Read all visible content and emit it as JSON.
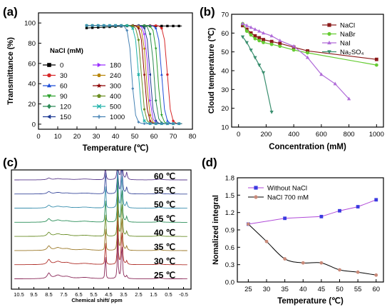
{
  "panels": {
    "a": {
      "label": "(a)",
      "chart_data": {
        "type": "line",
        "xlabel": "Temperature (℃)",
        "ylabel": "Transmittance (%)",
        "xlim": [
          0,
          80
        ],
        "ylim": [
          -5,
          110
        ],
        "xticks": [
          0,
          10,
          20,
          30,
          40,
          50,
          60,
          70,
          80
        ],
        "yticks": [
          0,
          20,
          40,
          60,
          80,
          100
        ],
        "legend_title": "NaCl (mM)",
        "series": [
          {
            "name": "0",
            "color": "#000000",
            "marker": "square",
            "onset": null
          },
          {
            "name": "30",
            "color": "#d62728",
            "marker": "circle",
            "onset": 67
          },
          {
            "name": "60",
            "color": "#1f4fd8",
            "marker": "triangle",
            "onset": 64
          },
          {
            "name": "90",
            "color": "#2ca02c",
            "marker": "triangle-down",
            "onset": 62
          },
          {
            "name": "120",
            "color": "#2e8b57",
            "marker": "diamond",
            "onset": 60
          },
          {
            "name": "150",
            "color": "#1f3a93",
            "marker": "triangle-left",
            "onset": 58
          },
          {
            "name": "180",
            "color": "#9b30ff",
            "marker": "triangle-right",
            "onset": 57
          },
          {
            "name": "240",
            "color": "#b8860b",
            "marker": "hexagon",
            "onset": 56
          },
          {
            "name": "300",
            "color": "#8b0000",
            "marker": "star",
            "onset": 55
          },
          {
            "name": "400",
            "color": "#6b8e23",
            "marker": "pentagon",
            "onset": 53.5
          },
          {
            "name": "500",
            "color": "#20b2aa",
            "marker": "x",
            "onset": 52
          },
          {
            "name": "1000",
            "color": "#4682b4",
            "marker": "cross",
            "onset": 48.5
          }
        ]
      }
    },
    "b": {
      "label": "(b)",
      "chart_data": {
        "type": "line",
        "xlabel": "Concentration (mM)",
        "ylabel": "Cloud temperature (℃)",
        "xlim": [
          -50,
          1050
        ],
        "ylim": [
          10,
          70
        ],
        "xticks": [
          0,
          200,
          400,
          600,
          800,
          1000
        ],
        "yticks": [
          10,
          20,
          30,
          40,
          50,
          60,
          70
        ],
        "series": [
          {
            "name": "NaCl",
            "color": "#8b1a1a",
            "marker": "square",
            "x": [
              30,
              60,
              90,
              120,
              150,
              180,
              240,
              300,
              400,
              500,
              1000
            ],
            "y": [
              64,
              62,
              60,
              58.5,
              57.5,
              56.5,
              55.5,
              54.5,
              52.5,
              50.5,
              46
            ]
          },
          {
            "name": "NaBr",
            "color": "#66cc33",
            "marker": "circle",
            "x": [
              30,
              60,
              90,
              120,
              150,
              180,
              240,
              300,
              400,
              500,
              1000
            ],
            "y": [
              65,
              61,
              59,
              57,
              56,
              55,
              54,
              53,
              51,
              49.5,
              43
            ]
          },
          {
            "name": "NaI",
            "color": "#b06bd8",
            "marker": "triangle",
            "x": [
              30,
              60,
              90,
              120,
              150,
              180,
              240,
              300,
              400,
              500,
              600,
              700,
              800
            ],
            "y": [
              65,
              64,
              63,
              62,
              61,
              60,
              58.5,
              56,
              53,
              47,
              38,
              33,
              25
            ]
          },
          {
            "name": "Na₂SO₄",
            "color": "#3a8f6f",
            "marker": "triangle-down",
            "x": [
              30,
              60,
              90,
              120,
              150,
              180,
              240
            ],
            "y": [
              58,
              55,
              51,
              47,
              43,
              39,
              18
            ]
          }
        ]
      }
    },
    "c": {
      "label": "(c)",
      "chart_data": {
        "type": "line",
        "xlabel": "Chemical shift/ ppm",
        "xticks": [
          "10.5",
          "9.5",
          "8.5",
          "7.5",
          "6.5",
          "5.5",
          "4.5",
          "3.5",
          "2.5",
          "1.5",
          "0.5",
          "-0.5"
        ],
        "series": [
          {
            "name": "60 ℃",
            "color": "#5b3a8c"
          },
          {
            "name": "55 ℃",
            "color": "#3a4a9c"
          },
          {
            "name": "50 ℃",
            "color": "#3a8fae"
          },
          {
            "name": "45 ℃",
            "color": "#2c8f5a"
          },
          {
            "name": "40 ℃",
            "color": "#6b8f2a"
          },
          {
            "name": "35 ℃",
            "color": "#9c7a2a"
          },
          {
            "name": "30 ℃",
            "color": "#b0302a"
          },
          {
            "name": "25 ℃",
            "color": "#8b2a5a"
          }
        ]
      }
    },
    "d": {
      "label": "(d)",
      "chart_data": {
        "type": "line",
        "xlabel": "Temperature (℃)",
        "ylabel": "Nomalized integral",
        "xlim": [
          22,
          62
        ],
        "ylim": [
          0,
          1.8
        ],
        "xticks": [
          25,
          30,
          35,
          40,
          45,
          50,
          55,
          60
        ],
        "yticks": [
          0.0,
          0.3,
          0.6,
          0.9,
          1.2,
          1.5,
          1.8
        ],
        "legend_placement": "top-left",
        "series": [
          {
            "name": "Without NaCl",
            "color": "#3a3ae0",
            "marker": "square",
            "x": [
              25,
              35,
              45,
              50,
              55,
              60
            ],
            "y": [
              1.0,
              1.1,
              1.13,
              1.23,
              1.3,
              1.42
            ]
          },
          {
            "name": "NaCl 700 mM",
            "color": "#c98a7a",
            "marker": "circle",
            "x": [
              25,
              30,
              35,
              40,
              45,
              50,
              55,
              60
            ],
            "y": [
              1.0,
              0.7,
              0.4,
              0.33,
              0.33,
              0.21,
              0.17,
              0.12
            ]
          }
        ]
      }
    }
  }
}
